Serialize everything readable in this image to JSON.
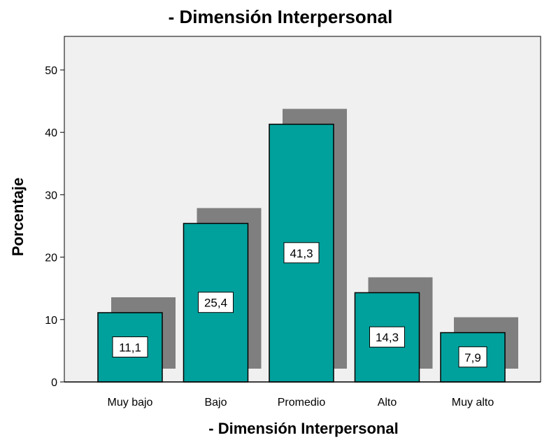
{
  "chart_data": {
    "type": "bar",
    "title": "- Dimensión Interpersonal",
    "xlabel": "- Dimensión Interpersonal",
    "ylabel": "Porcentaje",
    "categories": [
      "Muy bajo",
      "Bajo",
      "Promedio",
      "Alto",
      "Muy alto"
    ],
    "values": [
      11.1,
      25.4,
      41.3,
      14.3,
      7.9
    ],
    "value_labels": [
      "11,1",
      "25,4",
      "41,3",
      "14,3",
      "7,9"
    ],
    "yticks": [
      0,
      10,
      20,
      30,
      40,
      50
    ],
    "ylim": [
      0,
      55
    ],
    "grid": false,
    "colors": {
      "bar": "#00A19C",
      "bar_stroke": "#000000",
      "shadow": "#7F7F7F",
      "plot_bg": "#F0F0F0",
      "label_bg": "#FFFFFF"
    }
  }
}
